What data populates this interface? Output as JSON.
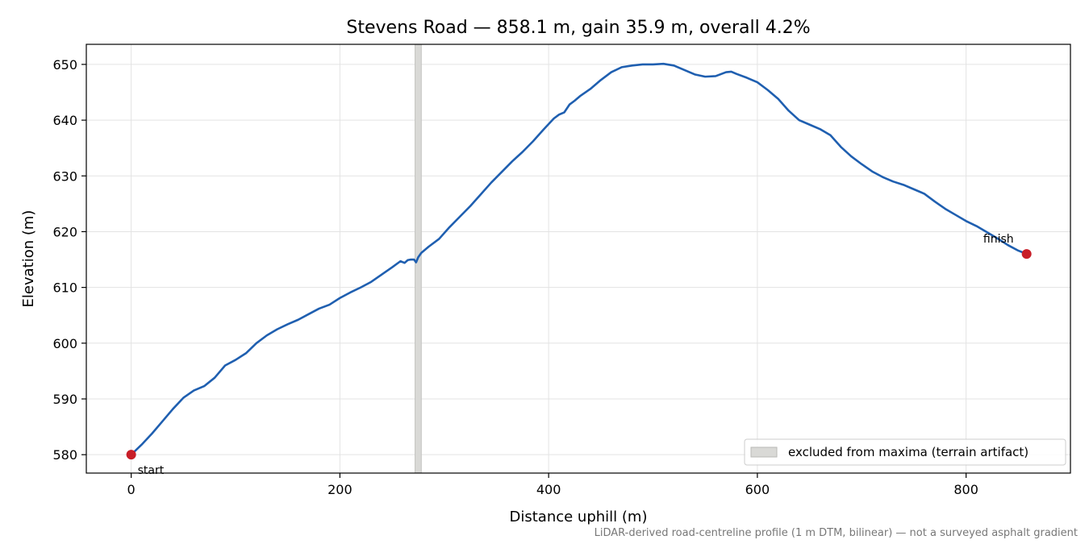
{
  "chart_data": {
    "type": "line",
    "title": "Stevens Road — 858.1 m, gain 35.9 m, overall 4.2%",
    "xlabel": "Distance uphill (m)",
    "ylabel": "Elevation (m)",
    "caption": "LiDAR-derived road-centreline profile (1 m DTM, bilinear) — not a surveyed asphalt gradient",
    "xlim": [
      -43,
      900
    ],
    "ylim": [
      576.7,
      653.6
    ],
    "x_ticks": [
      0,
      200,
      400,
      600,
      800
    ],
    "x_tick_labels": [
      "0",
      "200",
      "400",
      "600",
      "800"
    ],
    "y_ticks": [
      580,
      590,
      600,
      610,
      620,
      630,
      640,
      650
    ],
    "y_tick_labels": [
      "580",
      "590",
      "600",
      "610",
      "620",
      "630",
      "640",
      "650"
    ],
    "grid": true,
    "legend_position": "lower-right",
    "excluded_region": {
      "x": [
        272,
        278
      ],
      "label": "excluded from maxima (terrain artifact)",
      "color": "#d9d9d6"
    },
    "series": [
      {
        "color": "#1f5fb0",
        "x": [
          0,
          10,
          20,
          30,
          40,
          50,
          60,
          70,
          80,
          90,
          100,
          110,
          120,
          130,
          140,
          150,
          160,
          170,
          180,
          190,
          200,
          210,
          220,
          230,
          240,
          250,
          258,
          262,
          265,
          268,
          271,
          273,
          275,
          278,
          285,
          295,
          305,
          315,
          325,
          335,
          345,
          355,
          365,
          375,
          385,
          395,
          405,
          410,
          415,
          420,
          425,
          430,
          440,
          450,
          460,
          470,
          480,
          490,
          500,
          510,
          520,
          530,
          540,
          550,
          560,
          570,
          575,
          580,
          590,
          600,
          610,
          620,
          630,
          640,
          650,
          660,
          670,
          680,
          690,
          700,
          710,
          720,
          730,
          740,
          750,
          760,
          770,
          780,
          790,
          800,
          810,
          820,
          830,
          840,
          850,
          858
        ],
        "values": [
          580.0,
          581.8,
          583.8,
          586.0,
          588.2,
          590.2,
          591.5,
          592.3,
          593.8,
          596.0,
          597.0,
          598.2,
          600.0,
          601.4,
          602.5,
          603.4,
          604.2,
          605.2,
          606.2,
          606.9,
          608.1,
          609.1,
          610.0,
          611.0,
          612.3,
          613.6,
          614.7,
          614.4,
          614.9,
          615.0,
          615.0,
          614.5,
          615.4,
          616.2,
          617.3,
          618.7,
          620.8,
          622.7,
          624.6,
          626.7,
          628.8,
          630.7,
          632.6,
          634.3,
          636.2,
          638.3,
          640.3,
          641.0,
          641.4,
          642.8,
          643.5,
          644.3,
          645.6,
          647.2,
          648.6,
          649.5,
          649.8,
          650.0,
          650.0,
          650.1,
          649.8,
          649.0,
          648.2,
          647.8,
          647.9,
          648.6,
          648.7,
          648.3,
          647.6,
          646.8,
          645.4,
          643.8,
          641.7,
          640.0,
          639.2,
          638.4,
          637.3,
          635.2,
          633.5,
          632.1,
          630.8,
          629.8,
          629.0,
          628.4,
          627.6,
          626.8,
          625.4,
          624.1,
          623.0,
          621.9,
          621.0,
          619.9,
          618.8,
          617.6,
          616.6,
          616.0
        ]
      }
    ],
    "annotations": [
      {
        "label": "start",
        "x": 0,
        "y": 580.0,
        "placement": "below-right"
      },
      {
        "label": "finish",
        "x": 858,
        "y": 616.0,
        "placement": "above-left"
      }
    ],
    "marker_color": "#c81e28"
  }
}
